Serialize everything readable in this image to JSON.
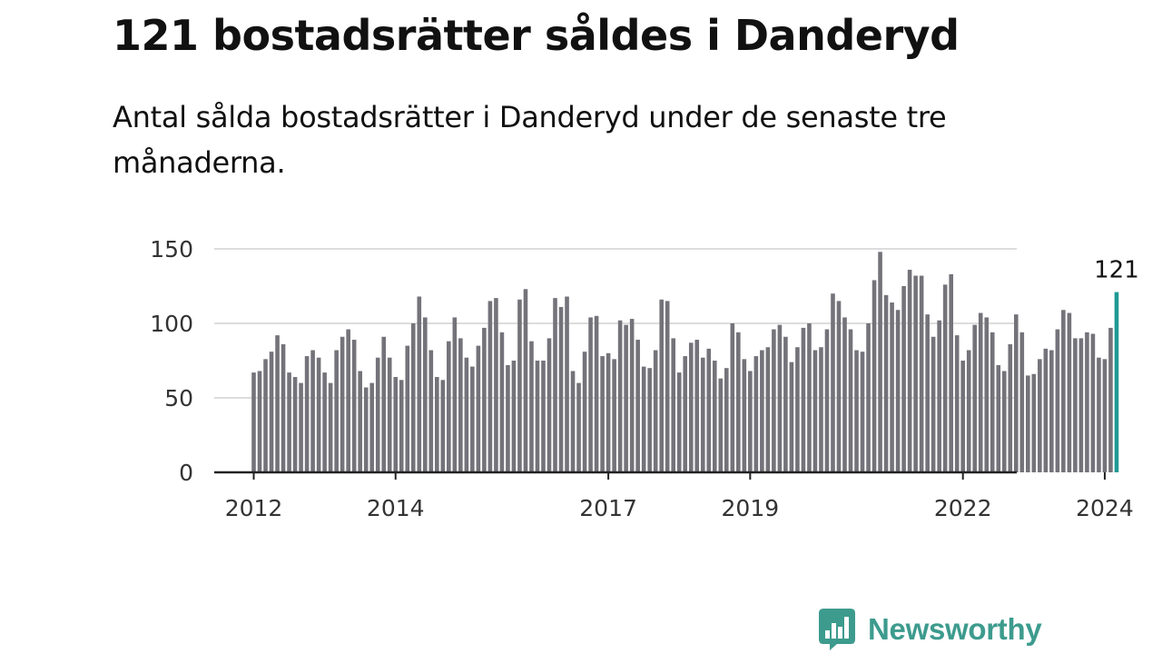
{
  "page": {
    "title": "121 bostadsrätter såldes i Danderyd",
    "subtitle": "Antal sålda bostadsrätter i Danderyd under de senaste tre månaderna."
  },
  "brand": {
    "name": "Newsworthy",
    "icon": "bar-chart-speech-bubble-icon",
    "color": "#3d9b8e"
  },
  "colors": {
    "bar": "#74737a",
    "highlight": "#1e9a94",
    "grid": "#dddddd",
    "axis": "#222222",
    "tick_text": "#333333"
  },
  "chart_data": {
    "type": "bar",
    "title": "",
    "xlabel": "",
    "ylabel": "",
    "ylim": [
      0,
      150
    ],
    "yticks": [
      0,
      50,
      100,
      150
    ],
    "grid": true,
    "x_start": "2012-01",
    "x_end": "2024-03",
    "xticks": [
      "2012",
      "2014",
      "2017",
      "2019",
      "2022",
      "2024"
    ],
    "highlight": {
      "x": "2024-03",
      "value": 121,
      "label": "121"
    },
    "series": [
      {
        "values": [
          67,
          68,
          76,
          81,
          92,
          86,
          67,
          64,
          60,
          78,
          82,
          77,
          67,
          60,
          82,
          91,
          96,
          89,
          68,
          57,
          60,
          77,
          91,
          77,
          64,
          62,
          85,
          100,
          118,
          104,
          82,
          64,
          62,
          88,
          104,
          90,
          77,
          71,
          85,
          97,
          115,
          117,
          94,
          72,
          75,
          116,
          123,
          88,
          75,
          75,
          90,
          117,
          111,
          118,
          68,
          60,
          81,
          104,
          105,
          78,
          80,
          76,
          102,
          99,
          103,
          89,
          71,
          70,
          82,
          116,
          115,
          90,
          67,
          78,
          87,
          89,
          77,
          83,
          75,
          63,
          70,
          100,
          94,
          76,
          68,
          78,
          82,
          84,
          96,
          99,
          91,
          74,
          84,
          97,
          100,
          82,
          84,
          96,
          120,
          115,
          104,
          96,
          82,
          81,
          100,
          129,
          148,
          119,
          114,
          109,
          125,
          136,
          132,
          132,
          106,
          91,
          102,
          126,
          133,
          92,
          75,
          82,
          99,
          107,
          104,
          94,
          72,
          68,
          86,
          106,
          94,
          65,
          66,
          76,
          83,
          82,
          96,
          109,
          107,
          90,
          90,
          94,
          93,
          77,
          76,
          97,
          121
        ]
      }
    ]
  }
}
